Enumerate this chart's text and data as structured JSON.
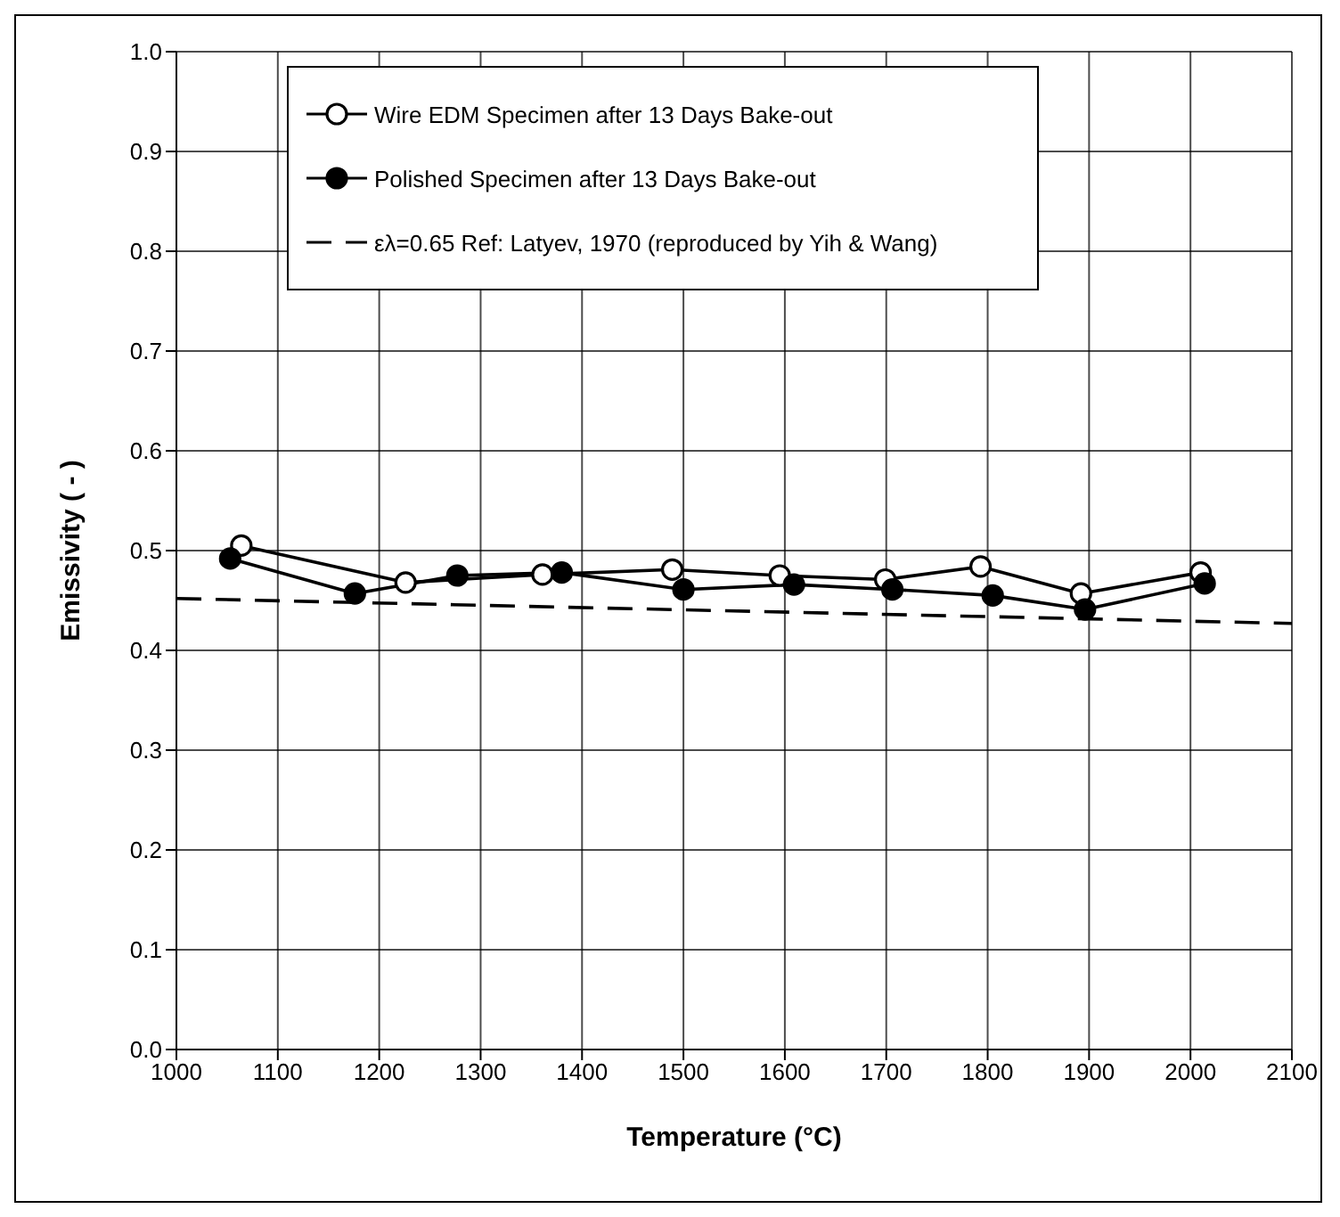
{
  "chart_data": {
    "type": "line",
    "xlabel": "Temperature (°C)",
    "ylabel": "Emissivity ( - )",
    "xlim": [
      1000,
      2100
    ],
    "xticks": [
      1000,
      1100,
      1200,
      1300,
      1400,
      1500,
      1600,
      1700,
      1800,
      1900,
      2000,
      2100
    ],
    "ylim": [
      0,
      1
    ],
    "yticks": [
      {
        "value": 0,
        "label": "0.0"
      },
      0.1,
      0.2,
      0.3,
      0.4,
      0.5,
      0.6,
      0.7,
      0.8,
      0.9,
      {
        "value": 1,
        "label": "1.0"
      }
    ],
    "grid": true,
    "legend": "top",
    "series": [
      {
        "name": "Wire EDM Specimen after 13 Days Bake-out",
        "color": "#000000",
        "marker": "circle",
        "line_style": "solid",
        "x": [
          1064,
          1226,
          1361,
          1489,
          1595,
          1699,
          1793,
          1892,
          2010
        ],
        "values": [
          0.505,
          0.468,
          0.476,
          0.481,
          0.475,
          0.471,
          0.484,
          0.457,
          0.478
        ]
      },
      {
        "name": "Polished Specimen after 13 Days Bake-out",
        "color": "#000000",
        "marker": "circle",
        "line_style": "solid",
        "x": [
          1053,
          1176,
          1277,
          1380,
          1500,
          1609,
          1706,
          1805,
          1896,
          2014
        ],
        "values": [
          0.492,
          0.457,
          0.475,
          0.478,
          0.461,
          0.466,
          0.461,
          0.455,
          0.441,
          0.467
        ]
      },
      {
        "name": "ελ=0.65 Ref: Latyev, 1970 (reproduced by Yih & Wang)",
        "color": "#000000",
        "marker": "none",
        "line_style": "dashed",
        "x": [
          1000,
          2100
        ],
        "values": [
          0.452,
          0.427
        ]
      }
    ]
  }
}
